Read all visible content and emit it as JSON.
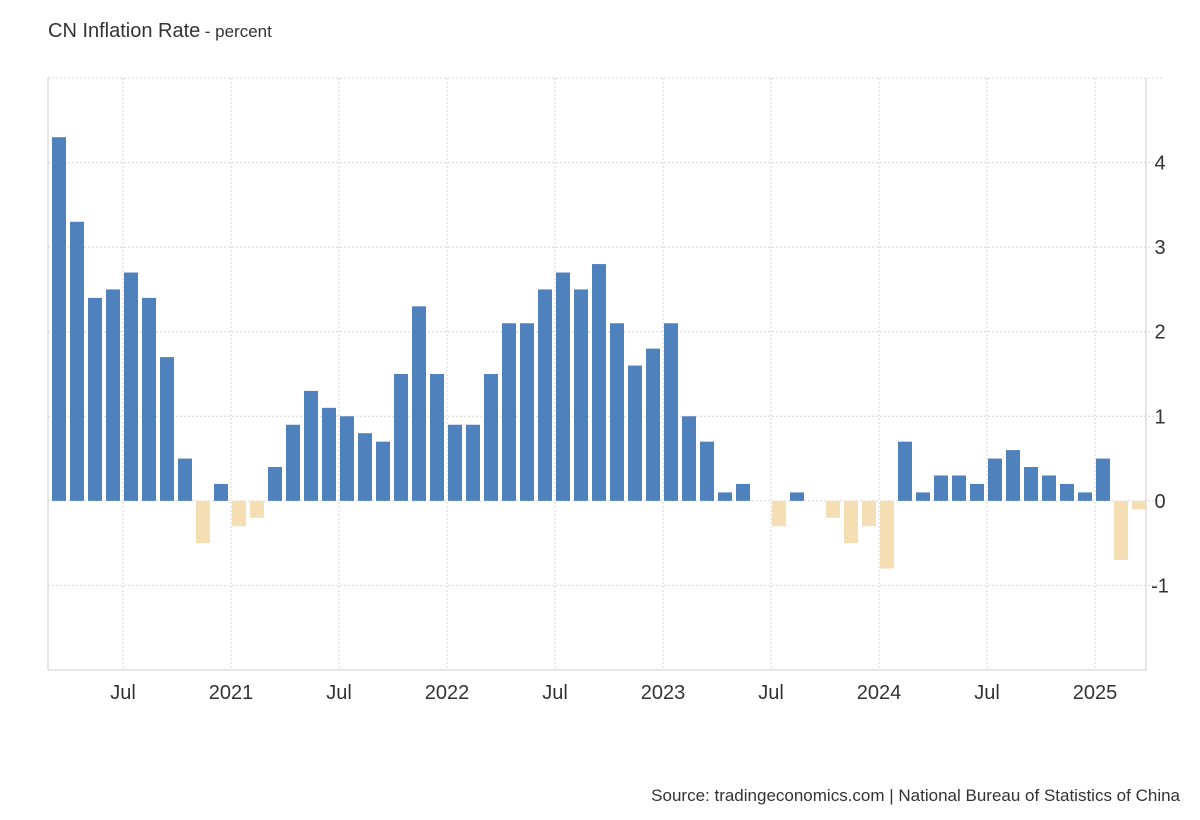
{
  "chart_data": {
    "type": "bar",
    "title": "CN Inflation Rate",
    "subtitle": "- percent",
    "unit": "percent",
    "categories": [
      "Mar 2020",
      "Apr 2020",
      "May 2020",
      "Jun 2020",
      "Jul 2020",
      "Aug 2020",
      "Sep 2020",
      "Oct 2020",
      "Nov 2020",
      "Dec 2020",
      "Jan 2021",
      "Feb 2021",
      "Mar 2021",
      "Apr 2021",
      "May 2021",
      "Jun 2021",
      "Jul 2021",
      "Aug 2021",
      "Sep 2021",
      "Oct 2021",
      "Nov 2021",
      "Dec 2021",
      "Jan 2022",
      "Feb 2022",
      "Mar 2022",
      "Apr 2022",
      "May 2022",
      "Jun 2022",
      "Jul 2022",
      "Aug 2022",
      "Sep 2022",
      "Oct 2022",
      "Nov 2022",
      "Dec 2022",
      "Jan 2023",
      "Feb 2023",
      "Mar 2023",
      "Apr 2023",
      "May 2023",
      "Jun 2023",
      "Jul 2023",
      "Aug 2023",
      "Sep 2023",
      "Oct 2023",
      "Nov 2023",
      "Dec 2023",
      "Jan 2024",
      "Feb 2024",
      "Mar 2024",
      "Apr 2024",
      "May 2024",
      "Jun 2024",
      "Jul 2024",
      "Aug 2024",
      "Sep 2024",
      "Oct 2024",
      "Nov 2024",
      "Dec 2024",
      "Jan 2025",
      "Feb 2025",
      "Mar 2025"
    ],
    "values": [
      4.3,
      3.3,
      2.4,
      2.5,
      2.7,
      2.4,
      1.7,
      0.5,
      -0.5,
      0.2,
      -0.3,
      -0.2,
      0.4,
      0.9,
      1.3,
      1.1,
      1.0,
      0.8,
      0.7,
      1.5,
      2.3,
      1.5,
      0.9,
      0.9,
      1.5,
      2.1,
      2.1,
      2.5,
      2.7,
      2.5,
      2.8,
      2.1,
      1.6,
      1.8,
      2.1,
      1.0,
      0.7,
      0.1,
      0.2,
      0.0,
      -0.3,
      0.1,
      0.0,
      -0.2,
      -0.5,
      -0.3,
      -0.8,
      0.7,
      0.1,
      0.3,
      0.3,
      0.2,
      0.5,
      0.6,
      0.4,
      0.3,
      0.2,
      0.1,
      0.5,
      -0.7,
      -0.1
    ],
    "ylim": [
      -2,
      5
    ],
    "yticks": [
      -1,
      0,
      1,
      2,
      3,
      4
    ],
    "xticks": [
      {
        "label": "Jul",
        "index": 4
      },
      {
        "label": "2021",
        "index": 10
      },
      {
        "label": "Jul",
        "index": 16
      },
      {
        "label": "2022",
        "index": 22
      },
      {
        "label": "Jul",
        "index": 28
      },
      {
        "label": "2023",
        "index": 34
      },
      {
        "label": "Jul",
        "index": 40
      },
      {
        "label": "2024",
        "index": 46
      },
      {
        "label": "Jul",
        "index": 52
      },
      {
        "label": "2025",
        "index": 58
      }
    ],
    "grid": true,
    "xlabel": "",
    "ylabel": "",
    "colors": {
      "positive": "#4f81bd",
      "negative": "#f5deb3",
      "grid": "#d6d6d6",
      "axis": "#cccccc"
    }
  },
  "source": "Source: tradingeconomics.com | National Bureau of Statistics of China"
}
